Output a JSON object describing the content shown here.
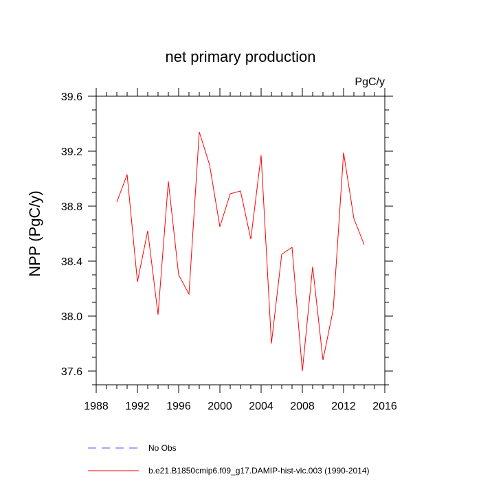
{
  "chart_data": {
    "type": "line",
    "title": "net primary production",
    "units_label": "PgC/y",
    "ylabel": "NPP  (PgC/y)",
    "xlabel": "",
    "xlim": [
      1988,
      2016
    ],
    "ylim": [
      37.5,
      39.6
    ],
    "xticks": [
      1988,
      1992,
      1996,
      2000,
      2004,
      2008,
      2012,
      2016
    ],
    "xtick_labels": [
      "1988",
      "1992",
      "1996",
      "2000",
      "2004",
      "2008",
      "2012",
      "2016"
    ],
    "yticks": [
      37.6,
      38.0,
      38.4,
      38.8,
      39.2,
      39.6
    ],
    "ytick_labels": [
      "37.6",
      "38.0",
      "38.4",
      "38.8",
      "39.2",
      "39.6"
    ],
    "grid": false,
    "series": [
      {
        "name": "b.e21.B1850cmip6.f09_g17.DAMIP-hist-vlc.003 (1990-2014)",
        "color": "#ff0000",
        "dash": "solid",
        "x": [
          1990,
          1991,
          1992,
          1993,
          1994,
          1995,
          1996,
          1997,
          1998,
          1999,
          2000,
          2001,
          2002,
          2003,
          2004,
          2005,
          2006,
          2007,
          2008,
          2009,
          2010,
          2011,
          2012,
          2013,
          2014
        ],
        "y": [
          38.83,
          39.03,
          38.25,
          38.62,
          38.01,
          38.98,
          38.3,
          38.16,
          39.34,
          39.1,
          38.65,
          38.89,
          38.91,
          38.56,
          39.17,
          37.8,
          38.45,
          38.5,
          37.6,
          38.36,
          37.68,
          38.05,
          39.19,
          38.71,
          38.52
        ]
      }
    ],
    "legend": {
      "placement": "bottom-left",
      "entries": [
        {
          "label": "No Obs",
          "color": "#4d4dff",
          "dash": "dashed"
        },
        {
          "label": "b.e21.B1850cmip6.f09_g17.DAMIP-hist-vlc.003 (1990-2014)",
          "color": "#ff0000",
          "dash": "solid"
        }
      ]
    }
  }
}
